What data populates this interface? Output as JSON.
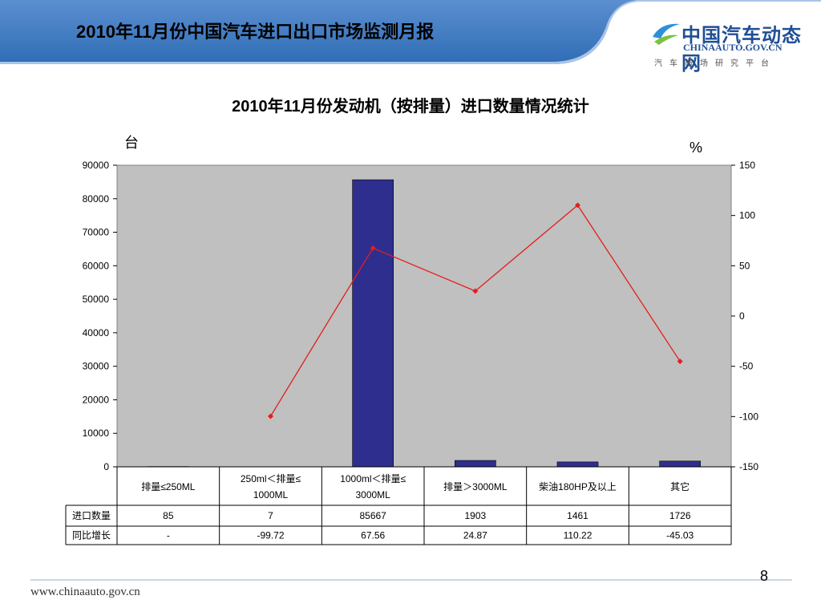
{
  "header": {
    "title": "2010年11月份中国汽车进口出口市场监测月报",
    "logo_main": "中国汽车动态网",
    "logo_domain": "CHINAAUTO.GOV.CN",
    "logo_sub": "汽车市场研究平台"
  },
  "colors": {
    "bar": "#2e2e8f",
    "line": "#e31e1e",
    "plot_bg": "#c0c0c0",
    "header_blue": "#2f6db5"
  },
  "chart_data": {
    "type": "bar",
    "title": "2010年11月份发动机（按排量）进口数量情况统计",
    "ylabel": "台",
    "y2label": "%",
    "ylim": [
      0,
      90000
    ],
    "yticks": [
      0,
      10000,
      20000,
      30000,
      40000,
      50000,
      60000,
      70000,
      80000,
      90000
    ],
    "y2lim": [
      -150,
      150
    ],
    "y2ticks": [
      -150,
      -100,
      -50,
      0,
      50,
      100,
      150
    ],
    "categories": [
      [
        "排量≤250ML"
      ],
      [
        "250ml＜排量≤",
        "1000ML"
      ],
      [
        "1000ml＜排量≤",
        "3000ML"
      ],
      [
        "排量＞3000ML"
      ],
      [
        "柴油180HP及以上"
      ],
      [
        "其它"
      ]
    ],
    "series": [
      {
        "name": "进口数量",
        "type": "bar",
        "axis": "left",
        "values": [
          85,
          7,
          85667,
          1903,
          1461,
          1726
        ],
        "labels": [
          "85",
          "7",
          "85667",
          "1903",
          "1461",
          "1726"
        ]
      },
      {
        "name": "同比增长",
        "type": "line",
        "axis": "right",
        "values": [
          null,
          -99.72,
          67.56,
          24.87,
          110.22,
          -45.03
        ],
        "labels": [
          "-",
          "-99.72",
          "67.56",
          "24.87",
          "110.22",
          "-45.03"
        ]
      }
    ]
  },
  "footer": {
    "url": "www.chinaauto.gov.cn",
    "page": "8"
  }
}
